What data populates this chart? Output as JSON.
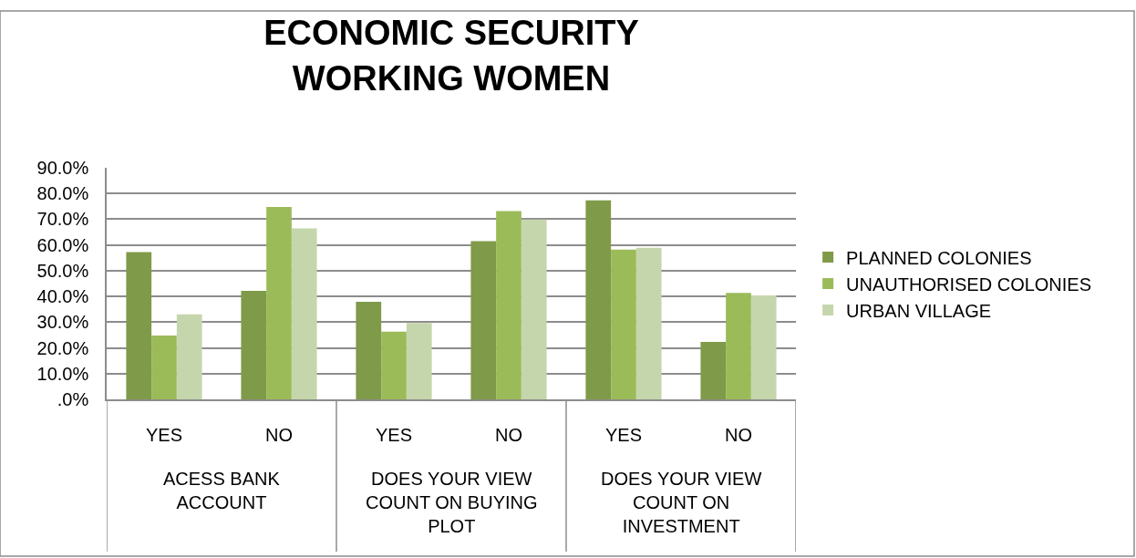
{
  "chart_data": {
    "type": "bar",
    "title": "ECONOMIC SECURITY WORKING WOMEN",
    "categories": [
      "YES",
      "NO",
      "YES",
      "NO",
      "YES",
      "NO"
    ],
    "annotations": [
      "ACESS BANK ACCOUNT",
      "DOES YOUR VIEW COUNT ON BUYING PLOT",
      "DOES YOUR VIEW COUNT ON INVESTMENT"
    ],
    "series": [
      {
        "name": "PLANNED COLONIES",
        "color": "#7f9a48",
        "values": [
          57.2,
          42.2,
          37.9,
          61.5,
          77.3,
          22.3
        ]
      },
      {
        "name": "UNAUTHORISED COLONIES",
        "color": "#9bbb59",
        "values": [
          24.8,
          74.8,
          26.3,
          73.2,
          58.2,
          41.4
        ]
      },
      {
        "name": "URBAN VILLAGE",
        "color": "#c6d6ac",
        "values": [
          33.0,
          66.4,
          29.7,
          69.9,
          58.9,
          40.4
        ]
      }
    ],
    "ylim": [
      0,
      90
    ],
    "yticks": [
      {
        "value": 0,
        "label": ".0%"
      },
      {
        "value": 10,
        "label": "10.0%"
      },
      {
        "value": 20,
        "label": "20.0%"
      },
      {
        "value": 30,
        "label": "30.0%"
      },
      {
        "value": 40,
        "label": "40.0%"
      },
      {
        "value": 50,
        "label": "50.0%"
      },
      {
        "value": 60,
        "label": "60.0%"
      },
      {
        "value": 70,
        "label": "70.0%"
      },
      {
        "value": 80,
        "label": "80.0%"
      },
      {
        "value": 90,
        "label": "90.0%"
      }
    ],
    "grid": "y",
    "legend": "right"
  }
}
